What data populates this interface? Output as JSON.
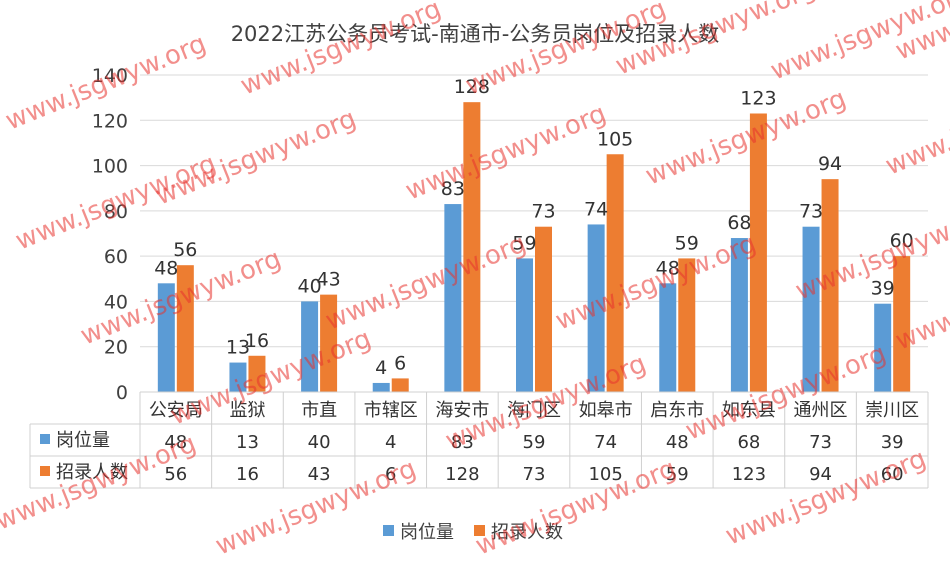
{
  "chart_data": {
    "type": "bar",
    "title": "2022江苏公务员考试-南通市-公务员岗位及招录人数",
    "categories": [
      "公安局",
      "监狱",
      "市直",
      "市辖区",
      "海安市",
      "海门区",
      "如皋市",
      "启东市",
      "如东县",
      "通州区",
      "崇川区"
    ],
    "series": [
      {
        "name": "岗位量",
        "color": "#5b9bd5",
        "values": [
          48,
          13,
          40,
          4,
          83,
          59,
          74,
          48,
          68,
          73,
          39
        ]
      },
      {
        "name": "招录人数",
        "color": "#ed7d31",
        "values": [
          56,
          16,
          43,
          6,
          128,
          73,
          105,
          59,
          123,
          94,
          60
        ]
      }
    ],
    "ylim": [
      0,
      140
    ],
    "yticks": [
      0,
      20,
      40,
      60,
      80,
      100,
      120,
      140
    ],
    "grid": true,
    "legend": "bottom",
    "data_table": true,
    "watermark": "www.jsgwyw.org"
  }
}
